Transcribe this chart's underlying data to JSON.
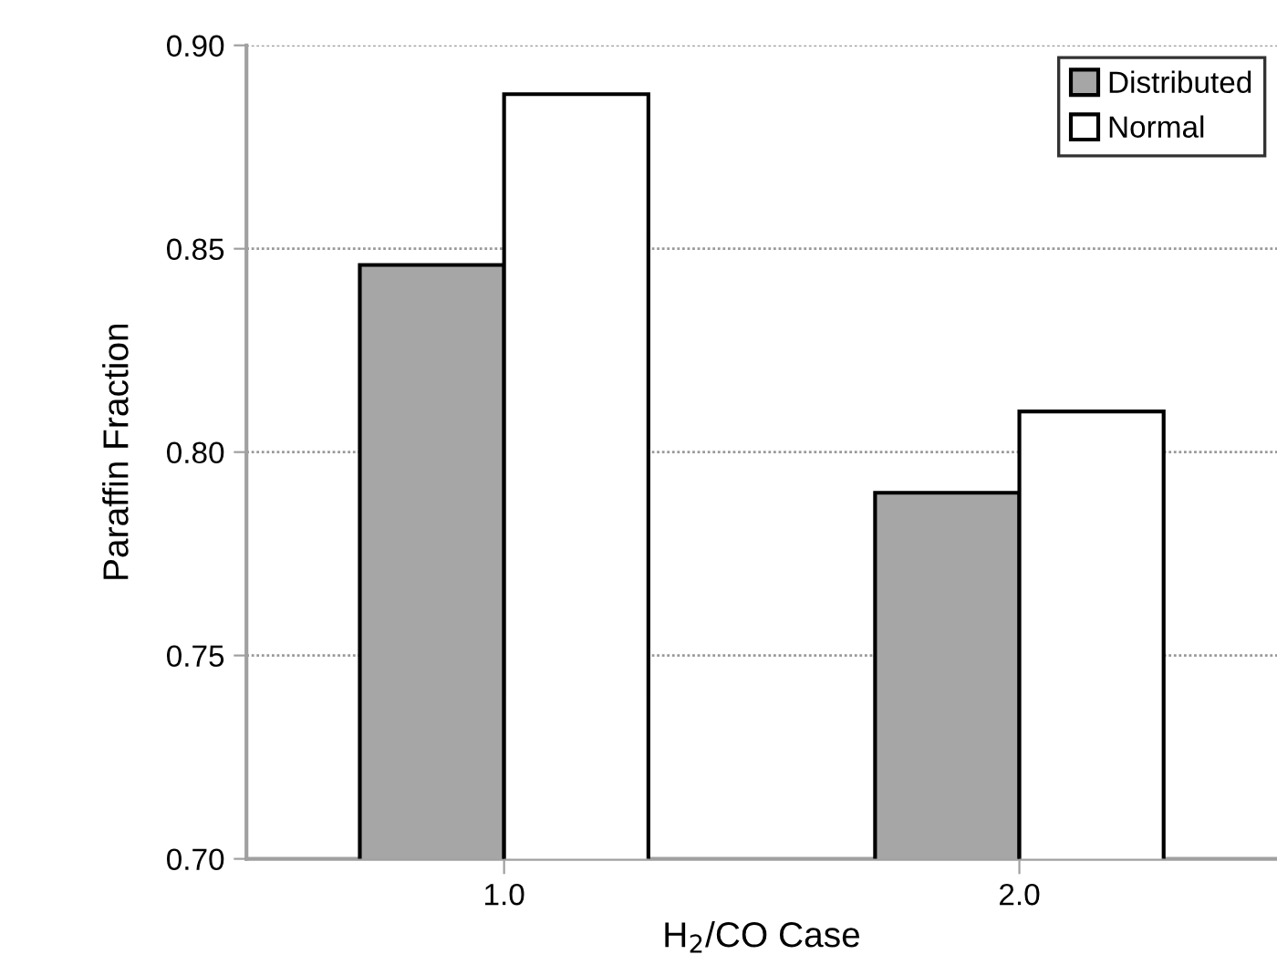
{
  "chart_data": {
    "type": "bar",
    "xlabel": "H$_{2}$/CO Case",
    "ylabel": "Paraffin Fraction",
    "categories": [
      "1.0",
      "2.0"
    ],
    "series": [
      {
        "name": "Distributed",
        "color": "#a6a6a6",
        "values": [
          0.846,
          0.79
        ]
      },
      {
        "name": "Normal",
        "color": "#ffffff",
        "values": [
          0.888,
          0.81
        ]
      }
    ],
    "ylim": [
      0.7,
      0.9
    ],
    "yticks": [
      {
        "value": 0.7,
        "label": "0.70"
      },
      {
        "value": 0.75,
        "label": "0.75"
      },
      {
        "value": 0.8,
        "label": "0.80"
      },
      {
        "value": 0.85,
        "label": "0.85"
      },
      {
        "value": 0.9,
        "label": "0.90"
      }
    ],
    "grid": "y",
    "legend": "top right"
  }
}
